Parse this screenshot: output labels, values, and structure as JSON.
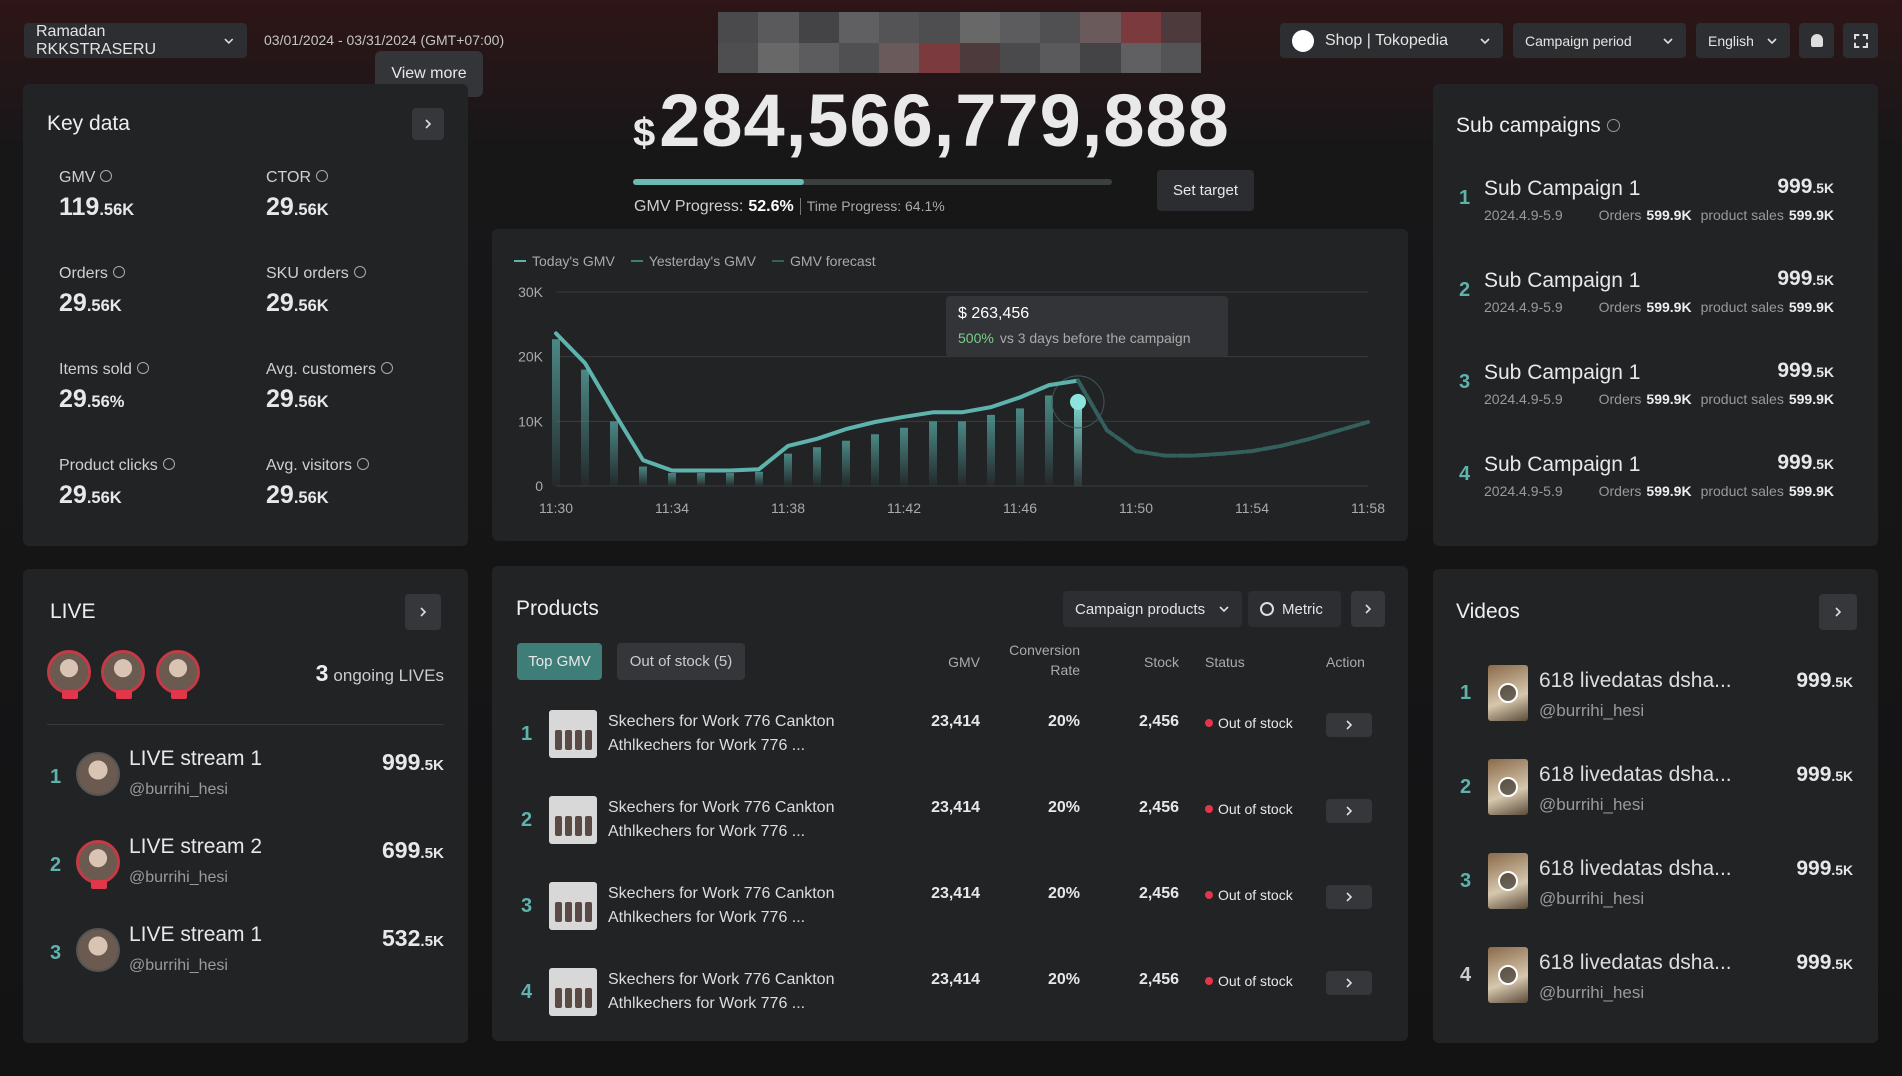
{
  "header": {
    "campaign": "Ramadan RKKSTRASERU",
    "date_range": "03/01/2024 - 03/31/2024 (GMT+07:00)",
    "tooltip": "View more",
    "currency": "$",
    "gmv_total": "284,566,779,888",
    "gmv_progress_label": "GMV Progress:",
    "gmv_progress": "52.6%",
    "time_progress": "Time Progress: 64.1%",
    "set_target": "Set target",
    "shop": "Shop | Tokopedia",
    "period": "Campaign period",
    "language": "English"
  },
  "key_data": {
    "title": "Key data",
    "items": [
      {
        "label": "GMV",
        "value": "119.56K"
      },
      {
        "label": "CTOR",
        "value": "29.56K"
      },
      {
        "label": "Orders",
        "value": "29.56K"
      },
      {
        "label": "SKU orders",
        "value": "29.56K"
      },
      {
        "label": "Items sold",
        "value": "29.56%"
      },
      {
        "label": "Avg. customers",
        "value": "29.56K"
      },
      {
        "label": "Product clicks",
        "value": "29.56K"
      },
      {
        "label": "Avg. visitors",
        "value": "29.56K"
      }
    ]
  },
  "chart_data": {
    "type": "line",
    "categories": [
      "11:30",
      null,
      null,
      null,
      "11:34",
      null,
      null,
      null,
      "11:38",
      null,
      null,
      null,
      "11:42",
      null,
      null,
      null,
      "11:46",
      null,
      null,
      null,
      "11:50",
      null,
      null,
      null,
      "11:54",
      null,
      null,
      null,
      "11:58"
    ],
    "series": [
      {
        "name": "Today's GMV",
        "kind": "line",
        "color": "#5fb3ad",
        "values": [
          23600,
          19000,
          11400,
          4000,
          2400,
          2400,
          2400,
          2600,
          6200,
          7300,
          8800,
          9900,
          10700,
          11400,
          11400,
          12200,
          13700,
          15600,
          16300,
          null,
          null,
          null,
          null,
          null,
          null,
          null,
          null,
          null,
          null
        ]
      },
      {
        "name": "Yesterday's GMV",
        "kind": "bar",
        "color": "#3f7d79",
        "values": [
          22700,
          18000,
          10000,
          3000,
          2000,
          2000,
          2000,
          2200,
          5000,
          6000,
          7000,
          8000,
          9000,
          10000,
          10000,
          11000,
          12000,
          14000,
          13000,
          null,
          null,
          null,
          null,
          null,
          null,
          null,
          null,
          null,
          null
        ]
      },
      {
        "name": "GMV forecast",
        "kind": "line",
        "dash": true,
        "color": "#335f5d",
        "values": [
          null,
          null,
          null,
          null,
          null,
          null,
          null,
          null,
          null,
          null,
          null,
          null,
          null,
          null,
          null,
          null,
          null,
          null,
          16300,
          8600,
          5400,
          4700,
          4700,
          5000,
          5400,
          6200,
          7300,
          8600,
          9900
        ]
      }
    ],
    "ylim": [
      0,
      30000
    ],
    "yticks": [
      0,
      {
        "value": 10000,
        "label": "10K"
      },
      {
        "value": 20000,
        "label": "20K"
      },
      {
        "value": 30000,
        "label": "30K"
      }
    ],
    "grid": true,
    "tooltip": {
      "value": "$ 263,456",
      "change": "500%",
      "note": "vs 3 days before the campaign"
    }
  },
  "sub_campaigns": {
    "title": "Sub campaigns",
    "orders_label": "Orders",
    "sales_label": "product sales",
    "rows": [
      {
        "rank": "1",
        "name": "Sub Campaign 1",
        "date": "2024.4.9-5.9",
        "orders": "599.9K",
        "sales": "599.9K",
        "value": "999.5K"
      },
      {
        "rank": "2",
        "name": "Sub Campaign 1",
        "date": "2024.4.9-5.9",
        "orders": "599.9K",
        "sales": "599.9K",
        "value": "999.5K"
      },
      {
        "rank": "3",
        "name": "Sub Campaign 1",
        "date": "2024.4.9-5.9",
        "orders": "599.9K",
        "sales": "599.9K",
        "value": "999.5K"
      },
      {
        "rank": "4",
        "name": "Sub Campaign 1",
        "date": "2024.4.9-5.9",
        "orders": "599.9K",
        "sales": "599.9K",
        "value": "999.5K"
      }
    ]
  },
  "live": {
    "title": "LIVE",
    "ongoing_count": "3",
    "ongoing_label": "ongoing LIVEs",
    "streams": [
      {
        "rank": "1",
        "name": "LIVE stream 1",
        "handle": "@burrihi_hesi",
        "value": "999.5K"
      },
      {
        "rank": "2",
        "name": "LIVE stream 2",
        "handle": "@burrihi_hesi",
        "value": "699.5K"
      },
      {
        "rank": "3",
        "name": "LIVE stream 1",
        "handle": "@burrihi_hesi",
        "value": "532.5K"
      }
    ]
  },
  "products": {
    "title": "Products",
    "filter": "Campaign products",
    "metric": "Metric",
    "tabs": [
      "Top GMV",
      "Out of stock (5)"
    ],
    "columns": [
      "GMV",
      "Conversion Rate",
      "Stock",
      "Status",
      "Action"
    ],
    "rows": [
      {
        "rank": "1",
        "name": "Skechers for Work 776 Cankton Athlkechers for Work 776 ...",
        "gmv": "23,414",
        "conversion": "20%",
        "stock": "2,456",
        "status": "Out of stock"
      },
      {
        "rank": "2",
        "name": "Skechers for Work 776 Cankton Athlkechers for Work 776 ...",
        "gmv": "23,414",
        "conversion": "20%",
        "stock": "2,456",
        "status": "Out of stock"
      },
      {
        "rank": "3",
        "name": "Skechers for Work 776 Cankton Athlkechers for Work 776 ...",
        "gmv": "23,414",
        "conversion": "20%",
        "stock": "2,456",
        "status": "Out of stock"
      },
      {
        "rank": "4",
        "name": "Skechers for Work 776 Cankton Athlkechers for Work 776 ...",
        "gmv": "23,414",
        "conversion": "20%",
        "stock": "2,456",
        "status": "Out of stock"
      }
    ]
  },
  "videos": {
    "title": "Videos",
    "rows": [
      {
        "rank": "1",
        "title": "618 livedatas dsha...",
        "handle": "@burrihi_hesi",
        "value": "999.5K"
      },
      {
        "rank": "2",
        "title": "618 livedatas dsha...",
        "handle": "@burrihi_hesi",
        "value": "999.5K"
      },
      {
        "rank": "3",
        "title": "618 livedatas dsha...",
        "handle": "@burrihi_hesi",
        "value": "999.5K"
      },
      {
        "rank": "4",
        "title": "618 livedatas dsha...",
        "handle": "@burrihi_hesi",
        "value": "999.5K"
      }
    ]
  }
}
